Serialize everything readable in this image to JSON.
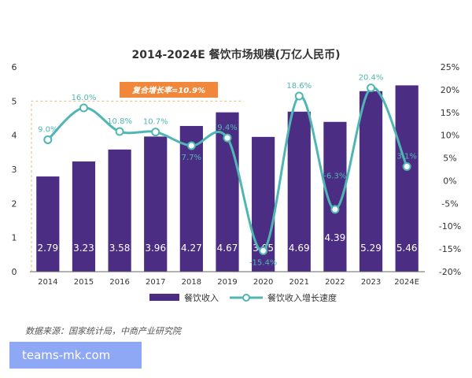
{
  "chart_data": {
    "type": "bar",
    "title": "2014-2024E 餐饮市场规模(万亿人民币)",
    "categories": [
      "2014",
      "2015",
      "2016",
      "2017",
      "2018",
      "2019",
      "2020",
      "2021",
      "2022",
      "2023",
      "2024E"
    ],
    "series": [
      {
        "name": "餐饮收入",
        "type": "bar",
        "axis": "left",
        "color": "#4b2e83",
        "values": [
          2.79,
          3.23,
          3.58,
          3.96,
          4.27,
          4.67,
          3.95,
          4.69,
          4.39,
          5.29,
          5.46
        ],
        "labels": [
          "2.79",
          "3.23",
          "3.58",
          "3.96",
          "4.27",
          "4.67",
          "3.95",
          "4.69",
          "4.39",
          "5.29",
          "5.46"
        ]
      },
      {
        "name": "餐饮收入增长速度",
        "type": "line",
        "axis": "right",
        "color": "#4fb6b3",
        "values": [
          9.0,
          16.0,
          10.8,
          10.7,
          7.7,
          9.4,
          -15.4,
          18.6,
          -6.3,
          20.4,
          3.1
        ],
        "labels": [
          "9.0%",
          "16.0%",
          "10.8%",
          "10.7%",
          "7.7%",
          "9.4%",
          "-15.4%",
          "18.6%",
          "-6.3%",
          "20.4%",
          "3.1%"
        ]
      }
    ],
    "y_left": {
      "min": 0,
      "max": 6,
      "ticks": [
        "0",
        "1",
        "2",
        "3",
        "4",
        "5",
        "6"
      ]
    },
    "y_right": {
      "min": -20,
      "max": 25,
      "ticks": [
        "-20%",
        "-15%",
        "-10%",
        "-5%",
        "0%",
        "5%",
        "10%",
        "15%",
        "20%",
        "25%"
      ]
    },
    "annotation": {
      "text": "复合增长率=10.9%",
      "color": "#f0873a",
      "from": "2014",
      "to": "2019",
      "level": 5.0
    },
    "legend": "bottom-center"
  },
  "source_text": "数据来源：国家统计局，中商产业研究院",
  "watermark_text": "teams-mk.com"
}
